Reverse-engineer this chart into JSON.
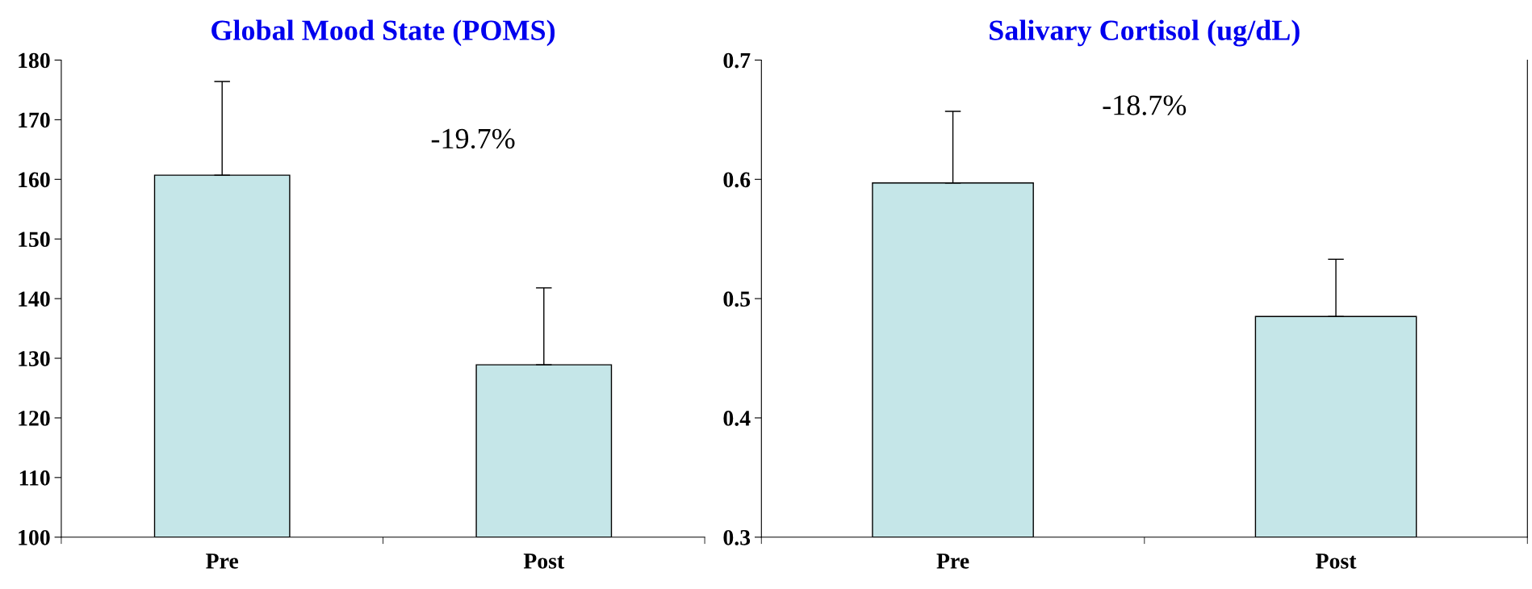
{
  "chart_data": [
    {
      "type": "bar",
      "title": "Global Mood State (POMS)",
      "categories": [
        "Pre",
        "Post"
      ],
      "values": [
        160.7,
        128.9
      ],
      "errors": [
        [
          160.7,
          176.4
        ],
        [
          128.9,
          141.8
        ]
      ],
      "color": "#c5e6e8",
      "ylim": [
        100,
        180
      ],
      "yticks": [
        100,
        110,
        120,
        130,
        140,
        150,
        160,
        170,
        180
      ],
      "annotations": [
        "-19.7%"
      ],
      "grid": false,
      "legend": false
    },
    {
      "type": "bar",
      "title": "Salivary Cortisol (ug/dL)",
      "categories": [
        "Pre",
        "Post"
      ],
      "values": [
        0.597,
        0.485
      ],
      "errors": [
        [
          0.597,
          0.657
        ],
        [
          0.485,
          0.533
        ]
      ],
      "color": "#c5e6e8",
      "ylim": [
        0.3,
        0.7
      ],
      "yticks": [
        0.3,
        0.4,
        0.5,
        0.6,
        0.7
      ],
      "annotations": [
        "-18.7%"
      ],
      "grid": false,
      "legend": false
    }
  ]
}
